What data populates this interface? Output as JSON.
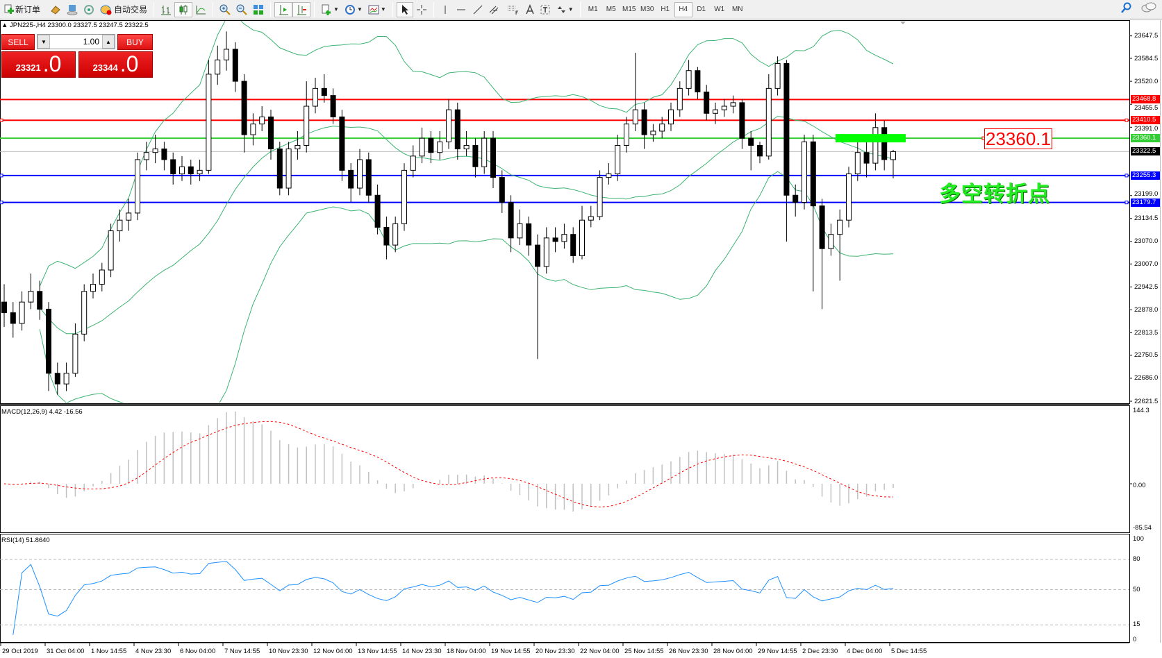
{
  "toolbar": {
    "new_order_label": "新订单",
    "auto_trading_label": "自动交易",
    "timeframes": [
      "M1",
      "M5",
      "M15",
      "M30",
      "H1",
      "H4",
      "D1",
      "W1",
      "MN"
    ],
    "active_timeframe": "H4",
    "icons": [
      "new-order-icon",
      "market-watch-icon",
      "navigator-icon",
      "signals-icon",
      "auto-trading-icon",
      "bar-chart-icon",
      "candlestick-icon",
      "line-chart-icon",
      "zoom-in-icon",
      "zoom-out-icon",
      "tile-windows-icon",
      "chart-shift-icon",
      "auto-scroll-icon",
      "indicators-icon",
      "periods-icon",
      "templates-icon",
      "cursor-icon",
      "crosshair-icon",
      "vertical-line-icon",
      "horizontal-line-icon",
      "trendline-icon",
      "equidistant-channel-icon",
      "fibonacci-icon",
      "text-icon",
      "text-label-icon",
      "arrows-icon",
      "search-icon",
      "chat-icon"
    ]
  },
  "chart": {
    "header": "JPN225-,H4  23300.0 23327.5 23247.5 23322.5",
    "trade_panel": {
      "sell_label": "SELL",
      "buy_label": "BUY",
      "lot": "1.00",
      "sell_big": "23321",
      "sell_frac": ".0",
      "buy_big": "23344",
      "buy_frac": ".0"
    },
    "annotation": "多空转折点",
    "price_label": "23360.1",
    "price_axis": [
      "23647.5",
      "23584.5",
      "23520.0",
      "23455.5",
      "23391.0",
      "23199.0",
      "23134.5",
      "23070.0",
      "23007.0",
      "22942.5",
      "22878.0",
      "22813.5",
      "22750.5",
      "22686.0",
      "22621.5"
    ],
    "levels": [
      {
        "price": 23468.8,
        "label": "23468.8",
        "color": "#ff0000"
      },
      {
        "price": 23410.5,
        "label": "23410.5",
        "color": "#ff0000"
      },
      {
        "price": 23360.1,
        "label": "23360.1",
        "color": "#32cd32"
      },
      {
        "price": 23322.5,
        "label": "23322.5",
        "color": "#000000",
        "line": "#c0c0c0"
      },
      {
        "price": 23255.3,
        "label": "23255.3",
        "color": "#0000ff"
      },
      {
        "price": 23179.7,
        "label": "23179.7",
        "color": "#0000ff"
      }
    ],
    "zone": {
      "price": 23360.1,
      "color": "#00ff00"
    },
    "candles": [
      [
        22900,
        22950,
        22830,
        22870
      ],
      [
        22870,
        22900,
        22800,
        22840
      ],
      [
        22840,
        22930,
        22820,
        22900
      ],
      [
        22900,
        22980,
        22880,
        22930
      ],
      [
        22930,
        22960,
        22850,
        22880
      ],
      [
        22880,
        22900,
        22650,
        22700
      ],
      [
        22700,
        22730,
        22640,
        22670
      ],
      [
        22670,
        22730,
        22650,
        22700
      ],
      [
        22700,
        22840,
        22690,
        22810
      ],
      [
        22810,
        22950,
        22790,
        22930
      ],
      [
        22930,
        22980,
        22910,
        22950
      ],
      [
        22950,
        23010,
        22930,
        22990
      ],
      [
        22990,
        23120,
        22970,
        23100
      ],
      [
        23100,
        23160,
        23070,
        23130
      ],
      [
        23130,
        23190,
        23100,
        23150
      ],
      [
        23150,
        23320,
        23130,
        23300
      ],
      [
        23300,
        23350,
        23270,
        23320
      ],
      [
        23320,
        23370,
        23290,
        23330
      ],
      [
        23330,
        23350,
        23270,
        23300
      ],
      [
        23300,
        23320,
        23230,
        23260
      ],
      [
        23260,
        23310,
        23240,
        23280
      ],
      [
        23280,
        23300,
        23230,
        23260
      ],
      [
        23260,
        23300,
        23240,
        23270
      ],
      [
        23270,
        23580,
        23260,
        23540
      ],
      [
        23540,
        23620,
        23510,
        23580
      ],
      [
        23580,
        23660,
        23550,
        23610
      ],
      [
        23610,
        23630,
        23490,
        23520
      ],
      [
        23520,
        23540,
        23320,
        23370
      ],
      [
        23370,
        23430,
        23340,
        23400
      ],
      [
        23400,
        23450,
        23380,
        23420
      ],
      [
        23420,
        23440,
        23300,
        23330
      ],
      [
        23330,
        23350,
        23200,
        23220
      ],
      [
        23220,
        23350,
        23200,
        23330
      ],
      [
        23330,
        23380,
        23300,
        23340
      ],
      [
        23340,
        23520,
        23320,
        23450
      ],
      [
        23450,
        23530,
        23430,
        23500
      ],
      [
        23500,
        23540,
        23460,
        23480
      ],
      [
        23480,
        23500,
        23400,
        23420
      ],
      [
        23420,
        23440,
        23240,
        23270
      ],
      [
        23270,
        23290,
        23180,
        23220
      ],
      [
        23220,
        23330,
        23200,
        23300
      ],
      [
        23300,
        23320,
        23180,
        23200
      ],
      [
        23200,
        23230,
        23090,
        23110
      ],
      [
        23110,
        23140,
        23020,
        23060
      ],
      [
        23060,
        23140,
        23040,
        23120
      ],
      [
        23120,
        23290,
        23100,
        23270
      ],
      [
        23270,
        23340,
        23250,
        23310
      ],
      [
        23310,
        23390,
        23290,
        23360
      ],
      [
        23360,
        23380,
        23290,
        23320
      ],
      [
        23320,
        23380,
        23300,
        23350
      ],
      [
        23350,
        23470,
        23330,
        23440
      ],
      [
        23440,
        23460,
        23300,
        23330
      ],
      [
        23330,
        23380,
        23310,
        23340
      ],
      [
        23340,
        23360,
        23250,
        23280
      ],
      [
        23280,
        23380,
        23260,
        23360
      ],
      [
        23360,
        23380,
        23220,
        23250
      ],
      [
        23250,
        23270,
        23150,
        23180
      ],
      [
        23180,
        23200,
        23040,
        23080
      ],
      [
        23080,
        23160,
        23060,
        23120
      ],
      [
        23120,
        23140,
        23030,
        23060
      ],
      [
        23060,
        23090,
        22740,
        23000
      ],
      [
        23000,
        23110,
        22980,
        23080
      ],
      [
        23080,
        23110,
        23040,
        23070
      ],
      [
        23070,
        23120,
        23050,
        23090
      ],
      [
        23090,
        23110,
        23010,
        23030
      ],
      [
        23030,
        23170,
        23020,
        23130
      ],
      [
        23130,
        23170,
        23110,
        23140
      ],
      [
        23140,
        23270,
        23130,
        23250
      ],
      [
        23250,
        23290,
        23230,
        23260
      ],
      [
        23260,
        23370,
        23240,
        23340
      ],
      [
        23340,
        23420,
        23320,
        23400
      ],
      [
        23400,
        23600,
        23380,
        23440
      ],
      [
        23440,
        23460,
        23330,
        23370
      ],
      [
        23370,
        23400,
        23350,
        23380
      ],
      [
        23380,
        23420,
        23360,
        23400
      ],
      [
        23400,
        23460,
        23380,
        23440
      ],
      [
        23440,
        23520,
        23420,
        23500
      ],
      [
        23500,
        23580,
        23480,
        23550
      ],
      [
        23550,
        23560,
        23470,
        23490
      ],
      [
        23490,
        23510,
        23410,
        23430
      ],
      [
        23430,
        23460,
        23400,
        23440
      ],
      [
        23440,
        23470,
        23420,
        23450
      ],
      [
        23450,
        23480,
        23430,
        23460
      ],
      [
        23460,
        23470,
        23330,
        23360
      ],
      [
        23360,
        23380,
        23270,
        23340
      ],
      [
        23340,
        23350,
        23290,
        23310
      ],
      [
        23310,
        23540,
        23300,
        23500
      ],
      [
        23500,
        23590,
        23480,
        23570
      ],
      [
        23570,
        23580,
        23070,
        23200
      ],
      [
        23200,
        23230,
        23140,
        23180
      ],
      [
        23180,
        23370,
        23160,
        23350
      ],
      [
        23350,
        23370,
        22930,
        23170
      ],
      [
        23170,
        23190,
        22880,
        23050
      ],
      [
        23050,
        23120,
        23030,
        23090
      ],
      [
        23090,
        23160,
        22960,
        23130
      ],
      [
        23130,
        23280,
        23110,
        23260
      ],
      [
        23260,
        23350,
        23240,
        23320
      ],
      [
        23320,
        23350,
        23250,
        23290
      ],
      [
        23290,
        23430,
        23270,
        23390
      ],
      [
        23390,
        23410,
        23270,
        23300
      ],
      [
        23300,
        23327.5,
        23247.5,
        23322.5
      ]
    ],
    "bollinger_color": "#3cb371"
  },
  "macd": {
    "title": "MACD(12,26,9) 4.42 -16.56",
    "axis": [
      "144.3",
      "0.00",
      "-85.54"
    ],
    "hist_color": "#c0c0c0",
    "signal_color": "#ff0000"
  },
  "rsi": {
    "title": "RSI(14) 51.8640",
    "axis": [
      "100",
      "80",
      "50",
      "15",
      "0"
    ],
    "line_color": "#1e90ff"
  },
  "time_axis": [
    "29 Oct 2019",
    "31 Oct 04:00",
    "1 Nov 14:55",
    "4 Nov 23:30",
    "6 Nov 04:00",
    "7 Nov 14:55",
    "10 Nov 23:30",
    "12 Nov 04:00",
    "13 Nov 14:55",
    "14 Nov 23:30",
    "18 Nov 04:00",
    "19 Nov 14:55",
    "20 Nov 23:30",
    "22 Nov 04:00",
    "25 Nov 14:55",
    "26 Nov 23:30",
    "28 Nov 04:00",
    "29 Nov 14:55",
    "2 Dec 23:30",
    "4 Dec 04:00",
    "5 Dec 14:55"
  ]
}
